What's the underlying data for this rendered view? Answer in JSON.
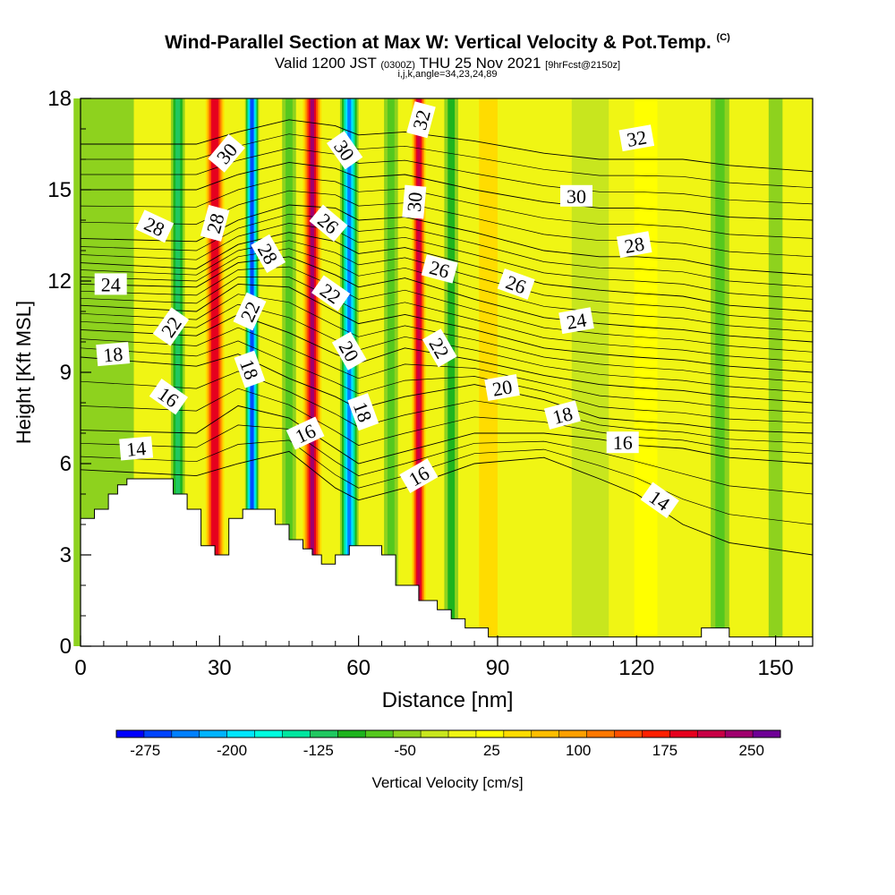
{
  "header": {
    "title": "Wind-Parallel Section at Max W: Vertical Velocity & Pot.Temp.",
    "copyright": "(C)",
    "valid_prefix": "Valid 1200 JST",
    "valid_utc": "(0300Z)",
    "valid_date": "THU 25 Nov 2021",
    "forecast": "[9hrFcst@2150z]",
    "indices": "i,j,k,angle=34,23,24,89"
  },
  "chart_data": {
    "type": "heatmap",
    "xlabel": "Distance [nm]",
    "ylabel": "Height [Kft MSL]",
    "xlim": [
      0,
      158
    ],
    "ylim": [
      0,
      18
    ],
    "x_ticks": [
      0,
      30,
      60,
      90,
      120,
      150
    ],
    "y_ticks": [
      0,
      3,
      6,
      9,
      12,
      15,
      18
    ],
    "colorbar": {
      "label": "Vertical Velocity [cm/s]",
      "range": [
        -300,
        275
      ],
      "step": 25,
      "tick_labels": [
        -275,
        -200,
        -125,
        -50,
        25,
        100,
        175,
        250
      ],
      "colors": [
        "#0000ff",
        "#0044ff",
        "#0080ff",
        "#00b4ff",
        "#00e6ff",
        "#00ffe0",
        "#00e6a0",
        "#20c860",
        "#1eb41e",
        "#55c81e",
        "#8ed21e",
        "#c8e61e",
        "#f0f514",
        "#ffff00",
        "#ffdc00",
        "#ffbe00",
        "#ffa000",
        "#ff7800",
        "#ff5000",
        "#ff2000",
        "#e6001e",
        "#c80046",
        "#a0006e",
        "#6e0096"
      ]
    },
    "vertical_velocity_bands": [
      {
        "x": 5,
        "w": 13,
        "value": -40
      },
      {
        "x": 21,
        "w": 3,
        "value": -110
      },
      {
        "x": 29,
        "w": 4,
        "value": 210
      },
      {
        "x": 37,
        "w": 3,
        "value": -260
      },
      {
        "x": 45,
        "w": 3,
        "value": -60
      },
      {
        "x": 50,
        "w": 4,
        "value": 250
      },
      {
        "x": 58,
        "w": 4,
        "value": -250
      },
      {
        "x": 67,
        "w": 3,
        "value": -60
      },
      {
        "x": 73,
        "w": 3,
        "value": 230
      },
      {
        "x": 80,
        "w": 3,
        "value": -80
      },
      {
        "x": 88,
        "w": 4,
        "value": 60
      },
      {
        "x": 110,
        "w": 8,
        "value": -20
      },
      {
        "x": 122,
        "w": 5,
        "value": 40
      },
      {
        "x": 138,
        "w": 4,
        "value": -70
      },
      {
        "x": 150,
        "w": 3,
        "value": -50
      }
    ],
    "terrain": [
      [
        0,
        4.2
      ],
      [
        3,
        4.2
      ],
      [
        3,
        4.5
      ],
      [
        6,
        4.5
      ],
      [
        6,
        5.0
      ],
      [
        8,
        5.0
      ],
      [
        8,
        5.3
      ],
      [
        10,
        5.3
      ],
      [
        10,
        5.5
      ],
      [
        20,
        5.5
      ],
      [
        20,
        5.0
      ],
      [
        23,
        5.0
      ],
      [
        23,
        4.5
      ],
      [
        26,
        4.5
      ],
      [
        26,
        3.3
      ],
      [
        29,
        3.3
      ],
      [
        29,
        3.0
      ],
      [
        32,
        3.0
      ],
      [
        32,
        4.2
      ],
      [
        35,
        4.2
      ],
      [
        35,
        4.5
      ],
      [
        42,
        4.5
      ],
      [
        42,
        4.0
      ],
      [
        45,
        4.0
      ],
      [
        45,
        3.5
      ],
      [
        48,
        3.5
      ],
      [
        48,
        3.2
      ],
      [
        50,
        3.2
      ],
      [
        50,
        3.0
      ],
      [
        52,
        3.0
      ],
      [
        52,
        2.7
      ],
      [
        55,
        2.7
      ],
      [
        55,
        3.0
      ],
      [
        58,
        3.0
      ],
      [
        58,
        3.3
      ],
      [
        65,
        3.3
      ],
      [
        65,
        3.0
      ],
      [
        68,
        3.0
      ],
      [
        68,
        2.0
      ],
      [
        73,
        2.0
      ],
      [
        73,
        1.5
      ],
      [
        77,
        1.5
      ],
      [
        77,
        1.2
      ],
      [
        80,
        1.2
      ],
      [
        80,
        0.9
      ],
      [
        83,
        0.9
      ],
      [
        83,
        0.6
      ],
      [
        88,
        0.6
      ],
      [
        88,
        0.3
      ],
      [
        134,
        0.3
      ],
      [
        134,
        0.6
      ],
      [
        140,
        0.6
      ],
      [
        140,
        0.3
      ],
      [
        158,
        0.3
      ]
    ],
    "isentropes": [
      {
        "label": "14",
        "pts": [
          [
            0,
            5.8
          ],
          [
            25,
            5.6
          ],
          [
            34,
            6.0
          ],
          [
            45,
            6.4
          ],
          [
            55,
            5.2
          ],
          [
            60,
            4.8
          ],
          [
            70,
            5.2
          ],
          [
            85,
            6.0
          ],
          [
            100,
            6.2
          ],
          [
            112,
            5.5
          ],
          [
            120,
            5.0
          ],
          [
            130,
            4.0
          ],
          [
            140,
            3.4
          ],
          [
            158,
            3.0
          ]
        ]
      },
      {
        "label": "16",
        "pts": [
          [
            0,
            7.1
          ],
          [
            25,
            7.0
          ],
          [
            34,
            7.9
          ],
          [
            45,
            7.5
          ],
          [
            55,
            6.5
          ],
          [
            60,
            6.0
          ],
          [
            70,
            6.4
          ],
          [
            85,
            7.0
          ],
          [
            100,
            7.0
          ],
          [
            112,
            6.8
          ],
          [
            120,
            6.6
          ],
          [
            130,
            6.5
          ],
          [
            140,
            6.2
          ],
          [
            158,
            6.0
          ]
        ]
      },
      {
        "label": "18",
        "pts": [
          [
            0,
            9.5
          ],
          [
            25,
            9.2
          ],
          [
            34,
            9.6
          ],
          [
            45,
            8.8
          ],
          [
            55,
            8.2
          ],
          [
            60,
            7.8
          ],
          [
            70,
            8.2
          ],
          [
            85,
            8.6
          ],
          [
            100,
            8.1
          ],
          [
            112,
            7.5
          ],
          [
            120,
            7.4
          ],
          [
            130,
            7.3
          ],
          [
            140,
            7.1
          ],
          [
            158,
            7.0
          ]
        ]
      },
      {
        "label": "20",
        "pts": [
          [
            0,
            10.4
          ],
          [
            25,
            10.2
          ],
          [
            34,
            10.9
          ],
          [
            45,
            10.3
          ],
          [
            55,
            9.6
          ],
          [
            60,
            9.3
          ],
          [
            70,
            9.8
          ],
          [
            85,
            9.4
          ],
          [
            100,
            8.9
          ],
          [
            112,
            8.6
          ],
          [
            120,
            8.5
          ],
          [
            130,
            8.4
          ],
          [
            140,
            8.2
          ],
          [
            158,
            8.0
          ]
        ]
      },
      {
        "label": "22",
        "pts": [
          [
            0,
            11.2
          ],
          [
            25,
            11.0
          ],
          [
            34,
            11.9
          ],
          [
            45,
            11.8
          ],
          [
            55,
            11.0
          ],
          [
            60,
            10.6
          ],
          [
            70,
            10.9
          ],
          [
            85,
            10.4
          ],
          [
            100,
            9.8
          ],
          [
            112,
            9.6
          ],
          [
            120,
            9.5
          ],
          [
            130,
            9.4
          ],
          [
            140,
            9.2
          ],
          [
            158,
            9.0
          ]
        ]
      },
      {
        "label": "24",
        "pts": [
          [
            0,
            11.9
          ],
          [
            25,
            11.8
          ],
          [
            34,
            12.6
          ],
          [
            45,
            12.8
          ],
          [
            55,
            12.2
          ],
          [
            60,
            11.8
          ],
          [
            70,
            12.1
          ],
          [
            85,
            11.4
          ],
          [
            100,
            10.8
          ],
          [
            112,
            10.6
          ],
          [
            120,
            10.5
          ],
          [
            130,
            10.4
          ],
          [
            140,
            10.2
          ],
          [
            158,
            10.0
          ]
        ]
      },
      {
        "label": "26",
        "pts": [
          [
            0,
            12.6
          ],
          [
            25,
            12.4
          ],
          [
            34,
            13.2
          ],
          [
            45,
            13.6
          ],
          [
            55,
            13.3
          ],
          [
            60,
            12.9
          ],
          [
            70,
            13.1
          ],
          [
            85,
            12.5
          ],
          [
            100,
            11.9
          ],
          [
            112,
            11.7
          ],
          [
            120,
            11.6
          ],
          [
            130,
            11.5
          ],
          [
            140,
            11.2
          ],
          [
            158,
            11.0
          ]
        ]
      },
      {
        "label": "28",
        "pts": [
          [
            0,
            13.4
          ],
          [
            25,
            13.3
          ],
          [
            34,
            14.0
          ],
          [
            45,
            14.5
          ],
          [
            55,
            14.4
          ],
          [
            60,
            14.0
          ],
          [
            70,
            14.1
          ],
          [
            85,
            13.6
          ],
          [
            100,
            13.0
          ],
          [
            112,
            12.8
          ],
          [
            120,
            12.8
          ],
          [
            130,
            12.7
          ],
          [
            140,
            12.4
          ],
          [
            158,
            12.2
          ]
        ]
      },
      {
        "label": "30",
        "pts": [
          [
            0,
            15.0
          ],
          [
            25,
            15.0
          ],
          [
            34,
            15.5
          ],
          [
            45,
            15.9
          ],
          [
            55,
            15.7
          ],
          [
            60,
            15.4
          ],
          [
            70,
            15.5
          ],
          [
            85,
            15.0
          ],
          [
            100,
            14.6
          ],
          [
            112,
            14.4
          ],
          [
            120,
            14.4
          ],
          [
            130,
            14.3
          ],
          [
            140,
            14.1
          ],
          [
            158,
            14.0
          ]
        ]
      },
      {
        "label": "32",
        "pts": [
          [
            0,
            16.5
          ],
          [
            25,
            16.5
          ],
          [
            34,
            16.9
          ],
          [
            45,
            17.3
          ],
          [
            55,
            17.1
          ],
          [
            60,
            16.8
          ],
          [
            70,
            16.9
          ],
          [
            85,
            16.6
          ],
          [
            100,
            16.2
          ],
          [
            112,
            16.0
          ],
          [
            120,
            16.0
          ],
          [
            130,
            16.0
          ],
          [
            140,
            15.8
          ],
          [
            158,
            15.6
          ]
        ]
      }
    ],
    "contour_labels": [
      {
        "text": "14",
        "x": 12,
        "y": 6.5,
        "rot": -5
      },
      {
        "text": "14",
        "x": 125,
        "y": 4.8,
        "rot": 35
      },
      {
        "text": "16",
        "x": 19,
        "y": 8.2,
        "rot": 35
      },
      {
        "text": "16",
        "x": 48.5,
        "y": 7.0,
        "rot": -25
      },
      {
        "text": "16",
        "x": 73,
        "y": 5.6,
        "rot": -30
      },
      {
        "text": "16",
        "x": 117,
        "y": 6.7,
        "rot": 0
      },
      {
        "text": "18",
        "x": 7,
        "y": 9.6,
        "rot": -5
      },
      {
        "text": "18",
        "x": 36.5,
        "y": 9.1,
        "rot": 70
      },
      {
        "text": "18",
        "x": 61,
        "y": 7.7,
        "rot": 70
      },
      {
        "text": "18",
        "x": 104,
        "y": 7.6,
        "rot": -15
      },
      {
        "text": "20",
        "x": 58,
        "y": 9.7,
        "rot": 60
      },
      {
        "text": "20",
        "x": 91,
        "y": 8.5,
        "rot": -10
      },
      {
        "text": "22",
        "x": 19.5,
        "y": 10.5,
        "rot": -55
      },
      {
        "text": "22",
        "x": 36.5,
        "y": 11.0,
        "rot": -65
      },
      {
        "text": "22",
        "x": 54,
        "y": 11.6,
        "rot": 35
      },
      {
        "text": "22",
        "x": 77.5,
        "y": 9.8,
        "rot": 60
      },
      {
        "text": "24",
        "x": 6.5,
        "y": 11.9,
        "rot": 0
      },
      {
        "text": "24",
        "x": 107,
        "y": 10.7,
        "rot": -10
      },
      {
        "text": "26",
        "x": 53.5,
        "y": 13.9,
        "rot": 40
      },
      {
        "text": "26",
        "x": 77.5,
        "y": 12.4,
        "rot": 15
      },
      {
        "text": "26",
        "x": 94,
        "y": 11.9,
        "rot": 20
      },
      {
        "text": "28",
        "x": 16,
        "y": 13.8,
        "rot": 25
      },
      {
        "text": "28",
        "x": 29,
        "y": 13.9,
        "rot": -75
      },
      {
        "text": "28",
        "x": 40.5,
        "y": 12.9,
        "rot": 60
      },
      {
        "text": "28",
        "x": 119.5,
        "y": 13.2,
        "rot": -10
      },
      {
        "text": "30",
        "x": 31.5,
        "y": 16.2,
        "rot": -50
      },
      {
        "text": "30",
        "x": 57,
        "y": 16.3,
        "rot": 55
      },
      {
        "text": "30",
        "x": 72,
        "y": 14.6,
        "rot": -85
      },
      {
        "text": "30",
        "x": 107,
        "y": 14.8,
        "rot": 0
      },
      {
        "text": "32",
        "x": 73.5,
        "y": 17.3,
        "rot": -75
      },
      {
        "text": "32",
        "x": 120,
        "y": 16.7,
        "rot": -10
      }
    ]
  }
}
